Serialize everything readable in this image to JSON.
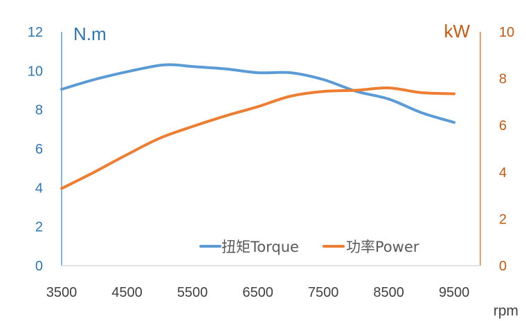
{
  "chart_data": {
    "type": "line",
    "title": "",
    "xlabel": "rpm",
    "y_left_label": "N.m",
    "y_right_label": "kW",
    "x_ticks": [
      "3500",
      "4500",
      "5500",
      "6500",
      "7500",
      "8500",
      "9500"
    ],
    "xlim": [
      3500,
      9900
    ],
    "y_left_ticks": [
      "0",
      "2",
      "4",
      "6",
      "8",
      "10",
      "12"
    ],
    "y_left_lim": [
      0,
      12
    ],
    "y_right_ticks": [
      "0",
      "2",
      "4",
      "6",
      "8",
      "10"
    ],
    "y_right_lim": [
      0,
      10
    ],
    "grid": false,
    "legend_position": "bottom-right",
    "series": [
      {
        "name": "扭矩Torque",
        "axis": "left",
        "color": "#5B9BD5",
        "x": [
          3500,
          4000,
          4500,
          5000,
          5250,
          5500,
          6000,
          6500,
          7000,
          7500,
          8000,
          8500,
          9000,
          9500
        ],
        "values": [
          9.05,
          9.55,
          9.95,
          10.28,
          10.3,
          10.22,
          10.1,
          9.9,
          9.9,
          9.55,
          8.95,
          8.55,
          7.85,
          7.35
        ]
      },
      {
        "name": "功率Power",
        "axis": "right",
        "color": "#ED7D31",
        "x": [
          3500,
          4000,
          4500,
          5000,
          5500,
          6000,
          6500,
          7000,
          7500,
          8000,
          8500,
          9000,
          9500
        ],
        "values": [
          3.3,
          4.0,
          4.75,
          5.45,
          5.95,
          6.4,
          6.8,
          7.25,
          7.45,
          7.5,
          7.6,
          7.4,
          7.35
        ]
      }
    ]
  }
}
